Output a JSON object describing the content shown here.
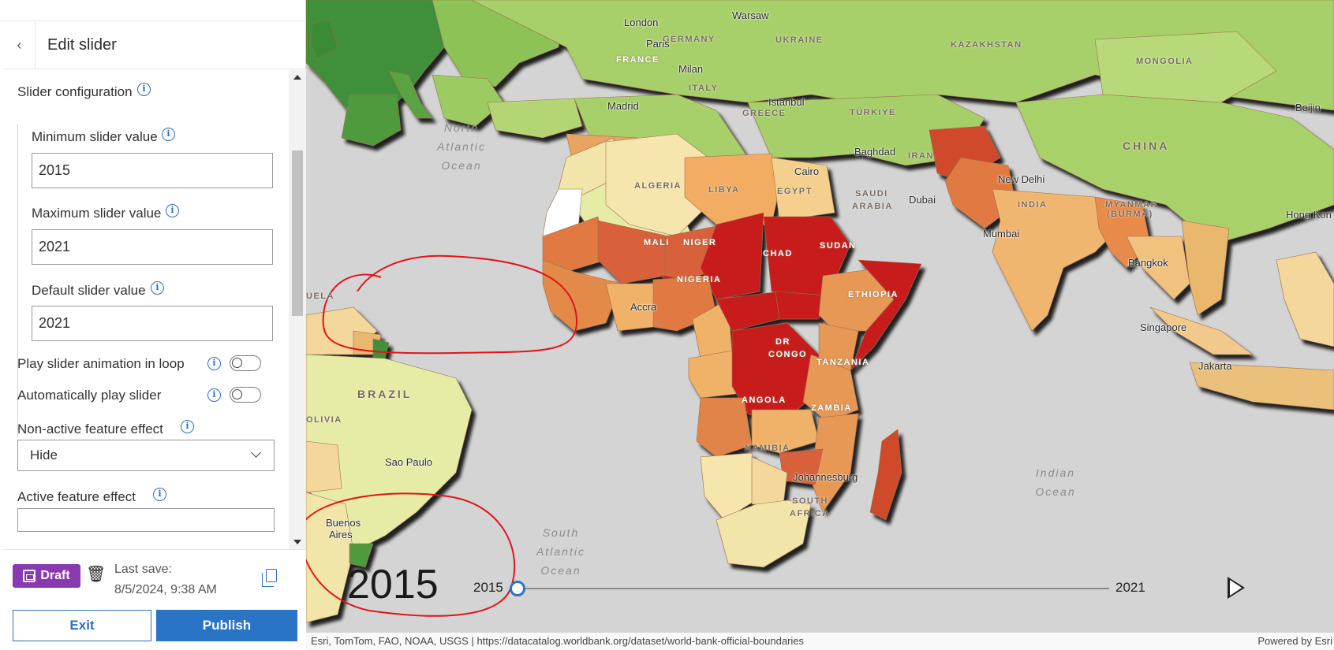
{
  "panel": {
    "title": "Edit slider",
    "slider_configuration": "Slider configuration",
    "min_label": "Minimum slider value",
    "min_value": "2015",
    "max_label": "Maximum slider value",
    "max_value": "2021",
    "default_label": "Default slider value",
    "default_value": "2021",
    "loop_label": "Play slider animation in loop",
    "loop_on": false,
    "autoplay_label": "Automatically play slider",
    "autoplay_on": false,
    "nonactive_label": "Non-active feature effect",
    "nonactive_value": "Hide",
    "active_label": "Active feature effect"
  },
  "footer": {
    "draft": "Draft",
    "last_save_label": "Last save:",
    "last_save_time": "8/5/2024, 9:38 AM",
    "exit": "Exit",
    "publish": "Publish"
  },
  "map": {
    "big_year": "2015",
    "slider_min": "2015",
    "slider_max": "2021",
    "slider_position": 0,
    "attribution": "Esri, TomTom, FAO, NOAA, USGS | https://datacatalog.worldbank.org/dataset/world-bank-official-boundaries",
    "powered_by": "Powered by Esri",
    "countries": {
      "germany": "GERMANY",
      "france": "FRANCE",
      "italy": "ITALY",
      "greece": "GREECE",
      "ukraine": "UKRAINE",
      "kazakhstan": "KAZAKHSTAN",
      "mongolia": "MONGOLIA",
      "china": "CHINA",
      "turkiye": "TÜRKIYE",
      "iran": "IRAN",
      "saudi": "SAUDI",
      "arabia": "ARABIA",
      "algeria": "ALGERIA",
      "libya": "LIBYA",
      "egypt": "EGYPT",
      "mali": "MALI",
      "niger": "NIGER",
      "chad": "CHAD",
      "sudan": "SUDAN",
      "nigeria": "NIGERIA",
      "ethiopia": "ETHIOPIA",
      "dr": "DR",
      "congo": "CONGO",
      "tanzania": "TANZANIA",
      "angola": "ANGOLA",
      "zambia": "ZAMBIA",
      "namibia": "NAMIBIA",
      "south": "SOUTH",
      "africa": "AFRICA",
      "india": "INDIA",
      "myanmar": "MYANMAR",
      "burma": "(BURMA)",
      "brazil": "BRAZIL",
      "bolivia": "OLIVIA",
      "venezuela": "UELA"
    },
    "cities": {
      "london": "London",
      "warsaw": "Warsaw",
      "paris": "Paris",
      "milan": "Milan",
      "madrid": "Madrid",
      "istanbul": "Istanbul",
      "beijing": "Beijin",
      "baghdad": "Baghdad",
      "cairo": "Cairo",
      "dubai": "Dubai",
      "new_delhi": "New Delhi",
      "mumbai": "Mumbai",
      "hong_kong": "Hong Kon",
      "bangkok": "Bangkok",
      "singapore": "Singapore",
      "jakarta": "Jakarta",
      "accra": "Accra",
      "johannesburg": "Johannesburg",
      "sao_paulo": "Sao Paulo",
      "buenos_aires_1": "Buenos",
      "buenos_aires_2": "Aires"
    },
    "oceans": {
      "north_atlantic": [
        "North",
        "Atlantic",
        "Ocean"
      ],
      "south_atlantic": [
        "South",
        "Atlantic",
        "Ocean"
      ],
      "indian": [
        "Indian",
        "Ocean"
      ]
    }
  },
  "colors": {
    "accent": "#2a74c6",
    "draft": "#8a3ab0",
    "annotation": "#e0141a"
  }
}
